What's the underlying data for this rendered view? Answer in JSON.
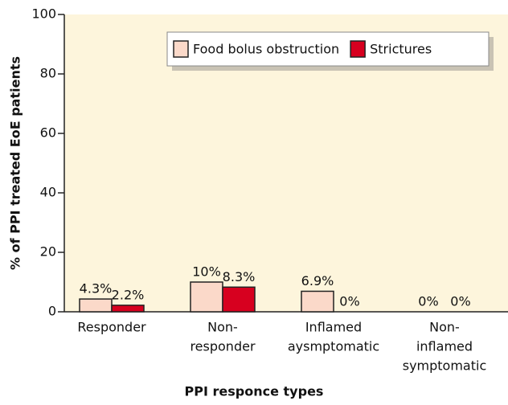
{
  "chart_data": {
    "type": "bar",
    "x_label": "PPI responce types",
    "y_label": "% of PPI treated EoE patients",
    "categories": [
      [
        "Responder"
      ],
      [
        "Non-",
        "responder"
      ],
      [
        "Inflamed",
        "aysmptomatic"
      ],
      [
        "Non-",
        "inflamed",
        "symptomatic"
      ]
    ],
    "series": [
      {
        "name": "Food bolus obstruction",
        "color": "#fbd9c9",
        "values": [
          4.3,
          10,
          6.9,
          0
        ],
        "value_labels": [
          "4.3%",
          "10%",
          "6.9%",
          "0%"
        ]
      },
      {
        "name": "Strictures",
        "color": "#d7001f",
        "values": [
          2.2,
          8.3,
          0,
          0
        ],
        "value_labels": [
          "2.2%",
          "8.3%",
          "0%",
          "0%"
        ]
      }
    ],
    "ylim": [
      0,
      100
    ],
    "yticks": [
      0,
      20,
      40,
      60,
      80,
      100
    ],
    "legend": "top-right",
    "background": "#fdf5dc"
  }
}
